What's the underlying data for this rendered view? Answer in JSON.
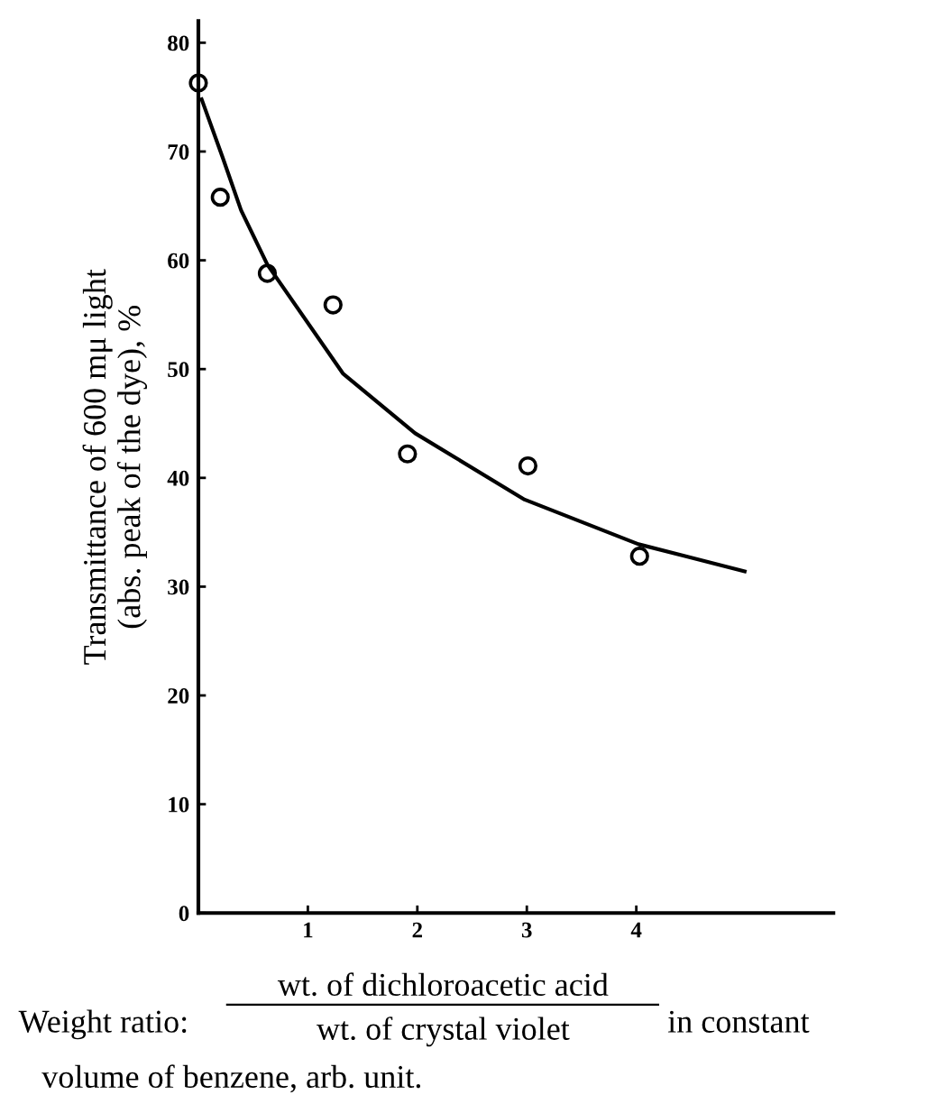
{
  "chart_data": {
    "type": "scatter",
    "ylabel": "Transmittance of 600 mμ light\n(abs. peak of the dye), %",
    "annotations": [
      "Weight ratio:",
      "wt. of dichloroacetic acid",
      "wt. of crystal violet",
      "in constant",
      "volume of benzene, arb. unit."
    ],
    "series": [
      {
        "color": "#000000",
        "marker": "circle",
        "x": [
          0.0,
          0.2,
          0.63,
          1.23,
          1.91,
          3.01,
          4.03
        ],
        "values": [
          76.3,
          65.8,
          58.8,
          55.9,
          42.2,
          41.1,
          32.8
        ]
      },
      {
        "type": "line",
        "color": "#000000",
        "line_style": "solid",
        "x": [
          0.03,
          0.22,
          0.39,
          0.63,
          1.32,
          1.98,
          2.98,
          4.02,
          4.99
        ],
        "values": [
          74.8,
          69.5,
          64.6,
          59.6,
          49.6,
          44.1,
          38.0,
          33.9,
          31.4
        ]
      }
    ],
    "xlim": [
      0,
      5.8
    ],
    "ylim": [
      0,
      82
    ],
    "xticks": [
      1,
      2,
      3,
      4
    ],
    "yticks": [
      0,
      10,
      20,
      30,
      40,
      50,
      60,
      70,
      80
    ],
    "grid": false,
    "legend": false
  }
}
